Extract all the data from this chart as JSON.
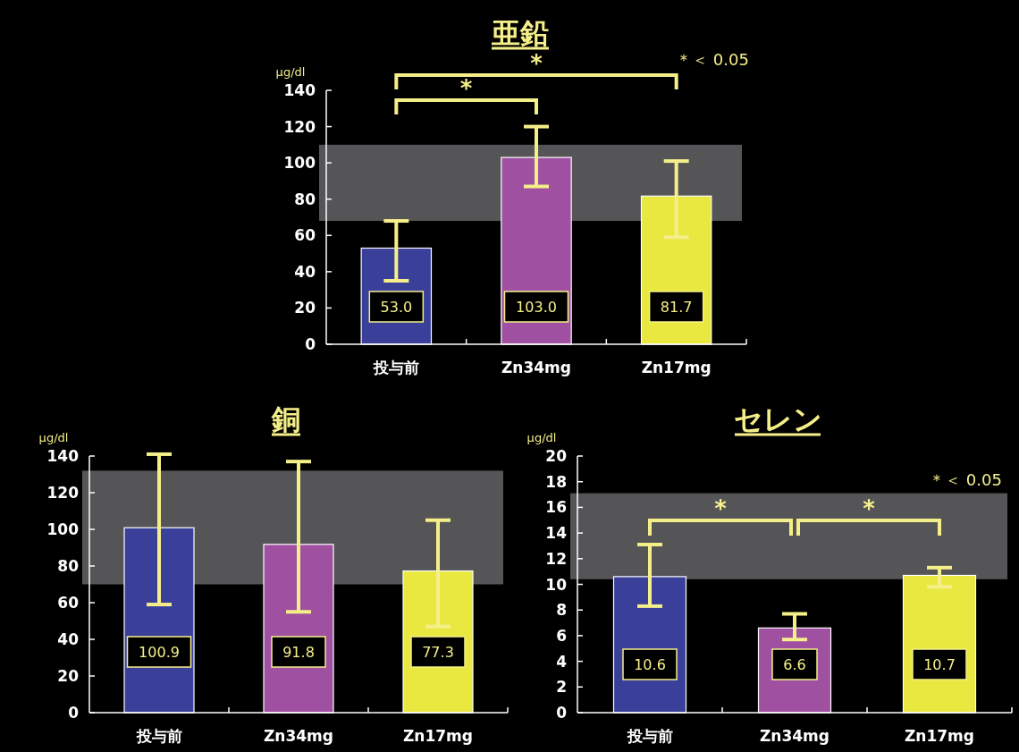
{
  "chart_data": [
    {
      "type": "bar",
      "title": "亜鉛",
      "ylabel": "μg/dl",
      "categories": [
        "投与前",
        "Zn34mg",
        "Zn17mg"
      ],
      "values": [
        53.0,
        103.0,
        81.7
      ],
      "value_labels": [
        "53.0",
        "103.0",
        "81.7"
      ],
      "colors": [
        "#3a3f9a",
        "#a050a0",
        "#e8e840"
      ],
      "errors": [
        [
          35,
          68
        ],
        [
          87,
          120
        ],
        [
          59,
          101
        ]
      ],
      "ylim": [
        0,
        140
      ],
      "yticks": [
        0,
        20,
        40,
        60,
        80,
        100,
        120,
        140
      ],
      "bands": [
        {
          "axis": "y",
          "from": 68,
          "to": 110,
          "color": "#555557"
        }
      ],
      "annotations": [
        "*",
        "*",
        "＊＜ 0.05"
      ]
    },
    {
      "type": "bar",
      "title": "銅",
      "ylabel": "μg/dl",
      "categories": [
        "投与前",
        "Zn34mg",
        "Zn17mg"
      ],
      "values": [
        100.9,
        91.8,
        77.3
      ],
      "value_labels": [
        "100.9",
        "91.8",
        "77.3"
      ],
      "colors": [
        "#3a3f9a",
        "#a050a0",
        "#e8e840"
      ],
      "errors": [
        [
          59,
          141
        ],
        [
          55,
          137
        ],
        [
          47,
          105
        ]
      ],
      "ylim": [
        0,
        140
      ],
      "yticks": [
        0,
        20,
        40,
        60,
        80,
        100,
        120,
        140
      ],
      "bands": [
        {
          "axis": "y",
          "from": 70,
          "to": 132,
          "color": "#555557"
        }
      ]
    },
    {
      "type": "bar",
      "title": "セレン",
      "ylabel": "μg/dl",
      "categories": [
        "投与前",
        "Zn34mg",
        "Zn17mg"
      ],
      "values": [
        10.6,
        6.6,
        10.7
      ],
      "value_labels": [
        "10.6",
        "6.6",
        "10.7"
      ],
      "colors": [
        "#3a3f9a",
        "#a050a0",
        "#e8e840"
      ],
      "errors": [
        [
          8.3,
          13.1
        ],
        [
          5.7,
          7.7
        ],
        [
          9.8,
          11.3
        ]
      ],
      "ylim": [
        0,
        20
      ],
      "yticks": [
        0,
        2,
        4,
        6,
        8,
        10,
        12,
        14,
        16,
        18,
        20
      ],
      "bands": [
        {
          "axis": "y",
          "from": 10.4,
          "to": 17.1,
          "color": "#555557"
        }
      ],
      "annotations": [
        "*",
        "*",
        "＊＜ 0.05"
      ]
    }
  ]
}
